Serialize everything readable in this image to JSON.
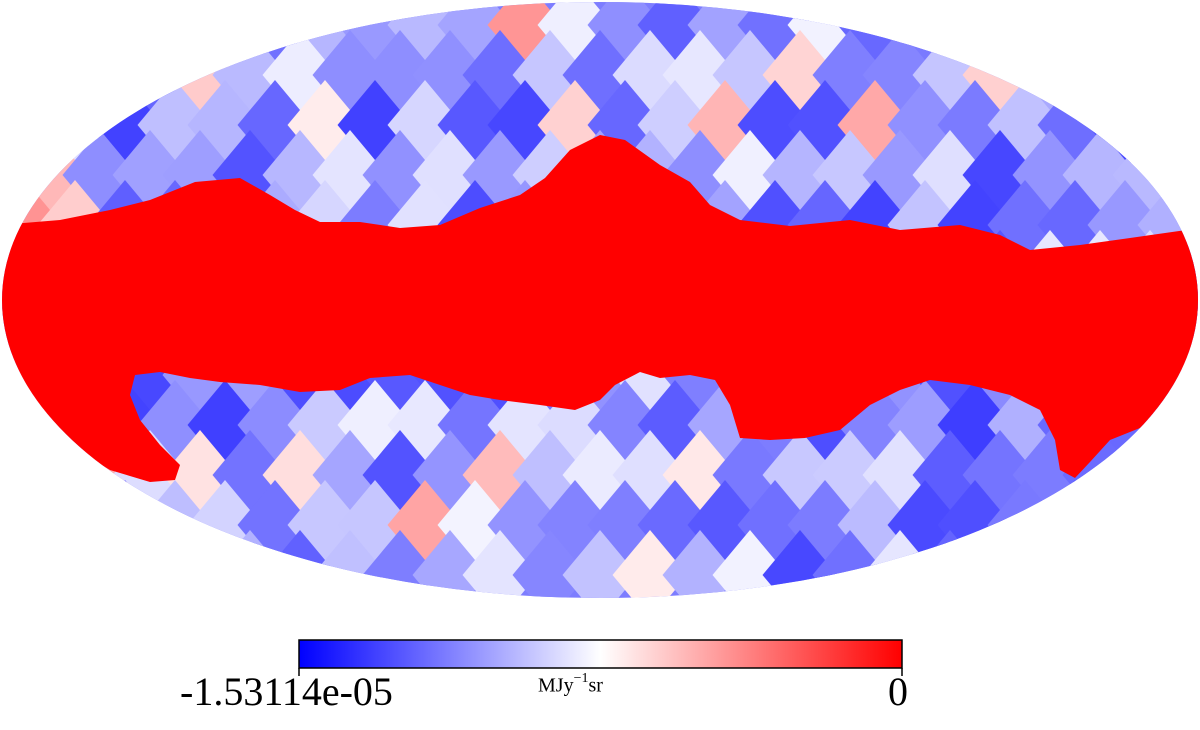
{
  "chart_data": {
    "type": "heatmap",
    "projection": "mollweide",
    "pixelization": "healpix",
    "colormap": "bwr",
    "colormap_stops": [
      "#0000ff",
      "#ffffff",
      "#ff0000"
    ],
    "masked_region": "galactic plane band (red)",
    "colorbar": {
      "min_label": "-1.53114e-05",
      "max_label": "0",
      "min": -1.53114e-05,
      "max": 0,
      "unit_base": "MJy",
      "unit_exp": "−1",
      "unit_tail": "sr"
    }
  }
}
